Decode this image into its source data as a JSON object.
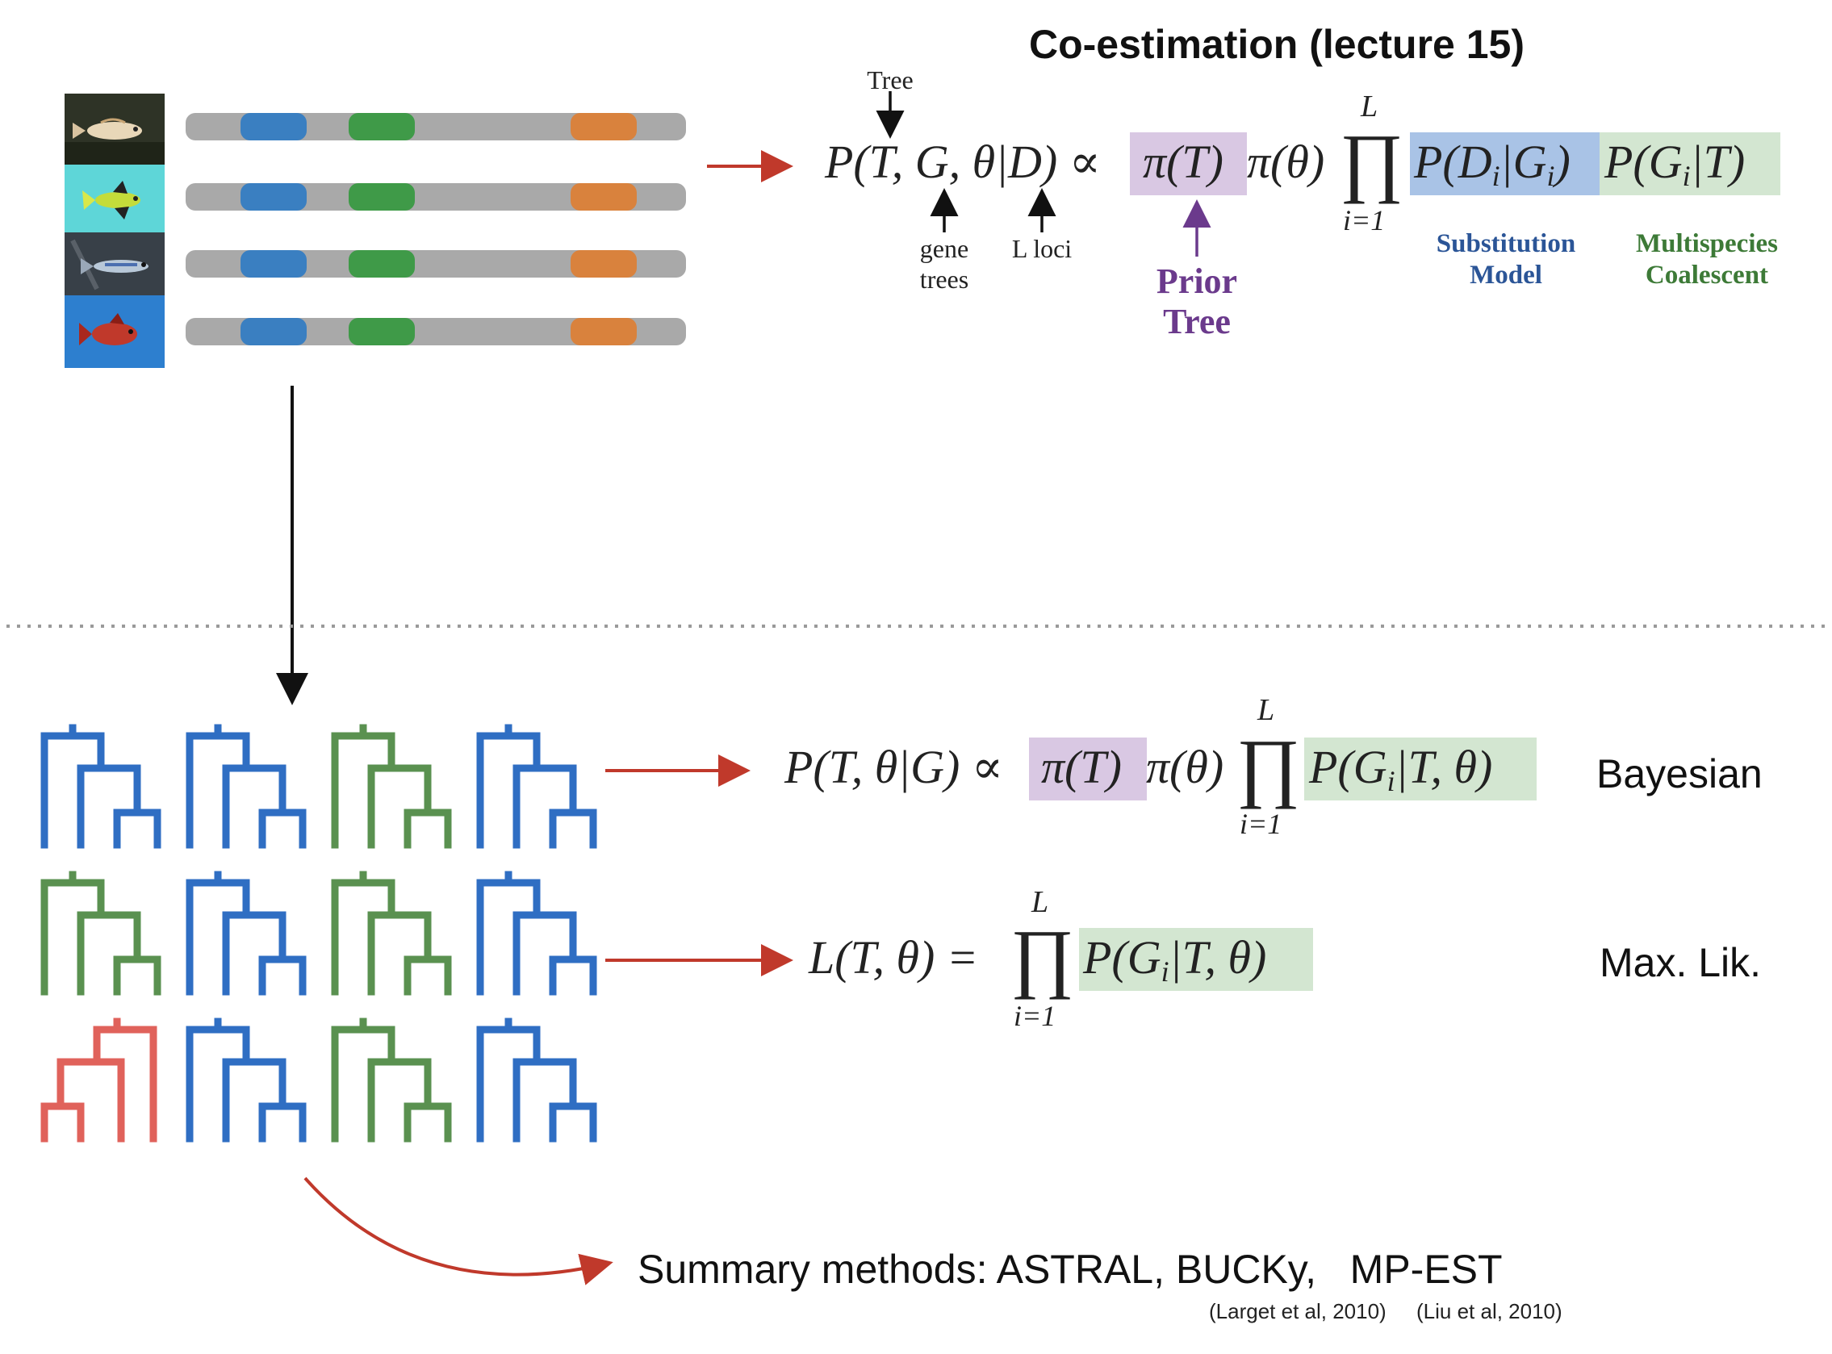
{
  "title": "Co-estimation (lecture 15)",
  "colors": {
    "locus_blue": "#3a7fc1",
    "locus_green": "#3f9a48",
    "locus_orange": "#d9823d",
    "bar_gray": "#a9a9a9",
    "arrow_red": "#c0392b",
    "tree_blue": "#2f6ec3",
    "tree_green": "#5a9150",
    "tree_red": "#e0625b",
    "prior_purple": "#6b3a8c",
    "subst_blue": "#2b5597",
    "coal_green": "#3d7a37",
    "hl_purple": "#d9c8e3",
    "hl_blue": "#a9c3e6",
    "hl_green": "#d3e6d1"
  },
  "fish_images": [
    "fish-1-icon",
    "fish-2-icon",
    "fish-3-icon",
    "fish-4-icon"
  ],
  "coestimation": {
    "tree_label": "Tree",
    "gene_trees_label": [
      "gene",
      "trees"
    ],
    "loci_label": "L loci",
    "lhs": "P(T, G, θ|D)",
    "propto": "∝",
    "prior_tree": "π(T)",
    "prior_theta": "π(θ)",
    "prod_top": "L",
    "prod_bottom": "i=1",
    "substitution_term": "P(D",
    "substitution_term_sub": "i",
    "substitution_term_mid": "|G",
    "substitution_term_end": ")",
    "coalescent_term": "P(G",
    "coalescent_term_end": "|T)",
    "prior_label": [
      "Prior",
      "Tree"
    ],
    "substitution_label": [
      "Substitution",
      "Model"
    ],
    "coalescent_label": [
      "Multispecies",
      "Coalescent"
    ]
  },
  "bayesian": {
    "lhs": "P(T, θ|G)",
    "propto": "∝",
    "prior_tree": "π(T)",
    "prior_theta": "π(θ)",
    "prod_top": "L",
    "prod_bottom": "i=1",
    "term": "P(G",
    "term_end": "|T, θ)",
    "label": "Bayesian"
  },
  "maxlik": {
    "lhs": "L(T, θ) =",
    "prod_top": "L",
    "prod_bottom": "i=1",
    "term": "P(G",
    "term_end": "|T, θ)",
    "label": "Max. Lik."
  },
  "summary": {
    "text": "Summary methods: ASTRAL, BUCKy,   MP-EST",
    "cite_bucky": "(Larget et al, 2010)",
    "cite_mpest": "(Liu et al, 2010)"
  },
  "gene_trees": [
    [
      "blue",
      "blue",
      "green",
      "blue"
    ],
    [
      "green",
      "blue",
      "green",
      "blue"
    ],
    [
      "red",
      "blue",
      "green",
      "blue"
    ]
  ]
}
